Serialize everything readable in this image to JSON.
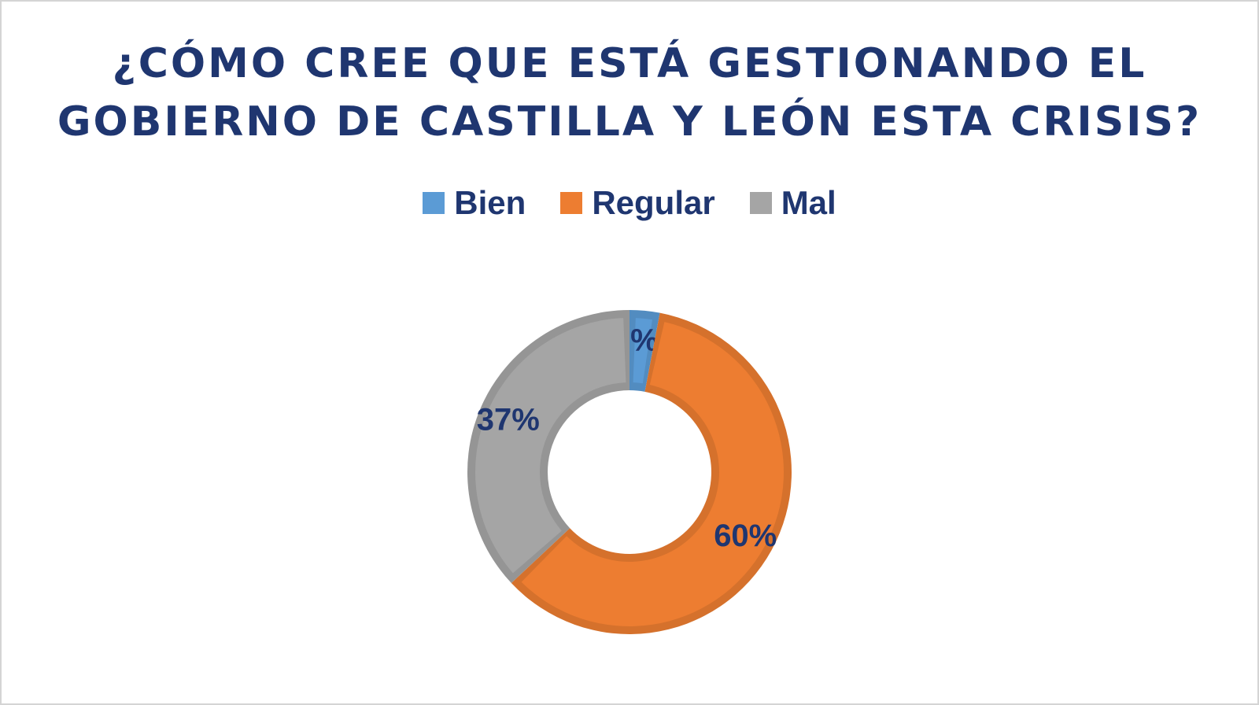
{
  "chart_data": {
    "type": "pie",
    "variant": "donut",
    "title": "¿CÓMO CREE QUE ESTÁ GESTIONANDO EL GOBIERNO DE CASTILLA Y LEÓN ESTA CRISIS?",
    "title_lines": [
      "¿CÓMO CREE QUE ESTÁ GESTIONANDO EL",
      "GOBIERNO DE CASTILLA Y LEÓN ESTA CRISIS?"
    ],
    "legend_position": "top",
    "categories": [
      "Bien",
      "Regular",
      "Mal"
    ],
    "values": [
      3,
      60,
      37
    ],
    "data_labels": [
      "3%",
      "60%",
      "37%"
    ],
    "colors": [
      "#5b9bd5",
      "#ed7d31",
      "#a5a5a5"
    ],
    "label_color": "#1f3670"
  }
}
